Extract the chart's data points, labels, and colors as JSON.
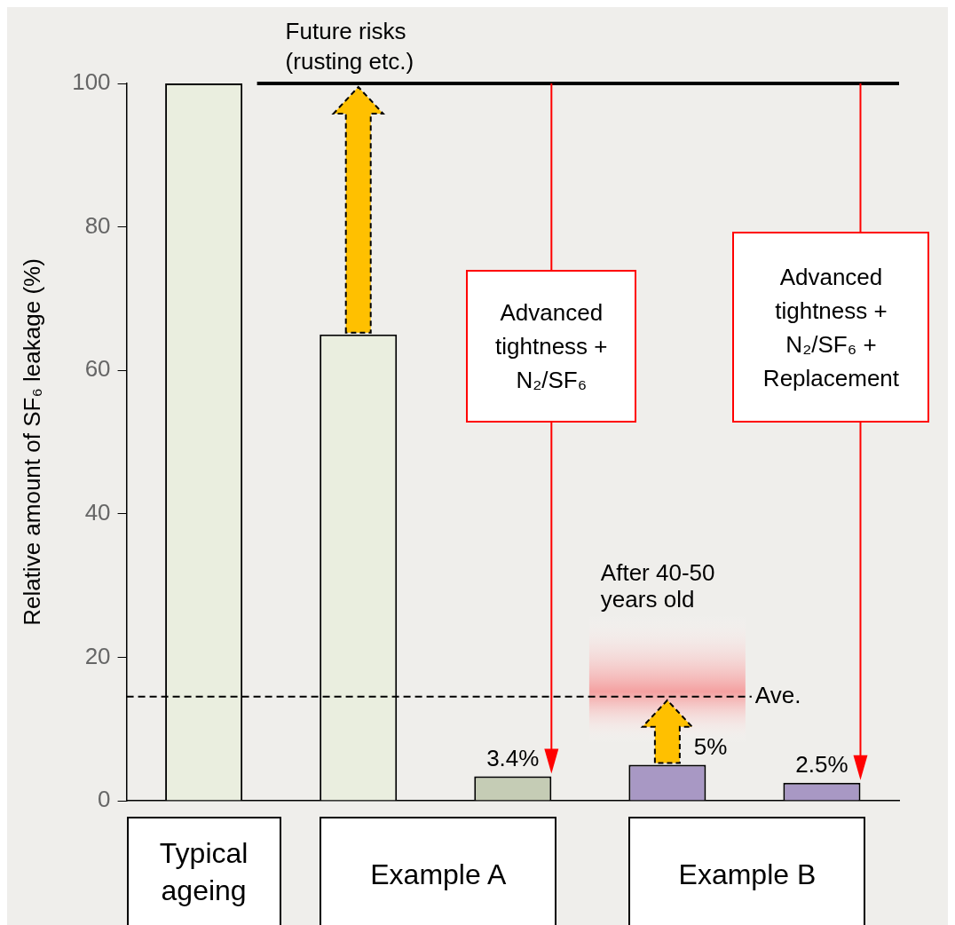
{
  "chart_data": {
    "type": "bar",
    "ylabel": "Relative amount of SF₆ leakage (%)",
    "categories": [
      null,
      null,
      null,
      null,
      null
    ],
    "values": [
      100,
      65,
      3.4,
      5,
      2.5
    ],
    "colors": [
      "#eaeedf",
      "#eaeedf",
      "#c5ccb5",
      "#a898c4",
      "#a898c4"
    ],
    "value_labels": [
      null,
      null,
      "3.4%",
      "5%",
      "2.5%"
    ],
    "ylim": [
      0,
      100
    ],
    "yticks": [
      0,
      20,
      40,
      60,
      80,
      100
    ],
    "grid": false,
    "legend": false,
    "ref_lines": [
      {
        "axis": "y",
        "value": 100,
        "label": "Future risks (rusting etc.)",
        "color": "#000000",
        "line_style": "solid"
      },
      {
        "axis": "y",
        "value": 14.5,
        "label": "Ave.",
        "color": "#000000",
        "line_style": "dashed"
      }
    ],
    "bands": [
      {
        "axis": "y",
        "from": 8,
        "to": 26,
        "label": "After 40-50 years old",
        "color": "#f4a0a0"
      }
    ],
    "annotations": [
      "Typical ageing",
      "Example A",
      "Example B",
      "Advanced tightness + N₂/SF₆",
      "Advanced tightness + N₂/SF₆ + Replacement"
    ]
  }
}
